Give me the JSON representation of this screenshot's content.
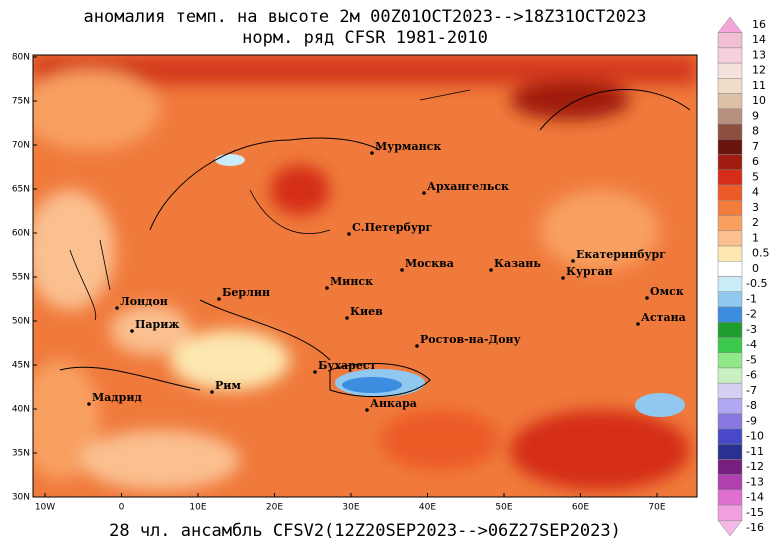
{
  "header": {
    "title": "аномалия темп. на высоте 2м 00Z01OCT2023-->18Z31OCT2023",
    "subtitle": "норм. ряд CFSR 1981-2010"
  },
  "footer": "28 чл. ансамбль CFSV2(12Z20SEP2023-->06Z27SEP2023)",
  "lat_labels": [
    "80N",
    "75N",
    "70N",
    "65N",
    "60N",
    "55N",
    "50N",
    "45N",
    "40N",
    "35N",
    "30N"
  ],
  "lon_labels": [
    "10W",
    "0",
    "10E",
    "20E",
    "30E",
    "40E",
    "50E",
    "60E",
    "70E"
  ],
  "cities": [
    "Мурманск",
    "Архангельск",
    "С.Петербург",
    "Москва",
    "Казань",
    "Екатеринбург",
    "Курган",
    "Омск",
    "Астана",
    "Минск",
    "Берлин",
    "Лондон",
    "Париж",
    "Киев",
    "Ростов-на-Дону",
    "Бухарест",
    "Рим",
    "Мадрид",
    "Анкара"
  ],
  "colorbar": [
    {
      "label": "16",
      "color": "#f4a6d8"
    },
    {
      "label": "14",
      "color": "#f0bfd4"
    },
    {
      "label": "13",
      "color": "#f6d0dc"
    },
    {
      "label": "12",
      "color": "#f6e2dc"
    },
    {
      "label": "11",
      "color": "#f0dcc8"
    },
    {
      "label": "10",
      "color": "#dcc0a8"
    },
    {
      "label": "9",
      "color": "#b89080"
    },
    {
      "label": "8",
      "color": "#8c5040"
    },
    {
      "label": "7",
      "color": "#6a1410"
    },
    {
      "label": "6",
      "color": "#a01c10"
    },
    {
      "label": "5",
      "color": "#d42e18"
    },
    {
      "label": "4",
      "color": "#ec5a28"
    },
    {
      "label": "3",
      "color": "#f47c3c"
    },
    {
      "label": "2",
      "color": "#f8a060"
    },
    {
      "label": "1",
      "color": "#fac090"
    },
    {
      "label": "0.5",
      "color": "#fce8b0"
    },
    {
      "label": "0",
      "color": "#ffffff"
    },
    {
      "label": "-0.5",
      "color": "#c8ecf8"
    },
    {
      "label": "-1",
      "color": "#90c8f0"
    },
    {
      "label": "-2",
      "color": "#3c8ce0"
    },
    {
      "label": "-3",
      "color": "#1e9e2e"
    },
    {
      "label": "-4",
      "color": "#3cc84c"
    },
    {
      "label": "-5",
      "color": "#90e888"
    },
    {
      "label": "-6",
      "color": "#c8f0c0"
    },
    {
      "label": "-7",
      "color": "#d8d0f0"
    },
    {
      "label": "-8",
      "color": "#b0a8f0"
    },
    {
      "label": "-9",
      "color": "#8878e0"
    },
    {
      "label": "-10",
      "color": "#4848c8"
    },
    {
      "label": "-11",
      "color": "#283090"
    },
    {
      "label": "-12",
      "color": "#782080"
    },
    {
      "label": "-13",
      "color": "#b040b0"
    },
    {
      "label": "-14",
      "color": "#e070d0"
    },
    {
      "label": "-15",
      "color": "#f0a0e0"
    },
    {
      "label": "-16",
      "color": "#f4b8e8"
    }
  ]
}
